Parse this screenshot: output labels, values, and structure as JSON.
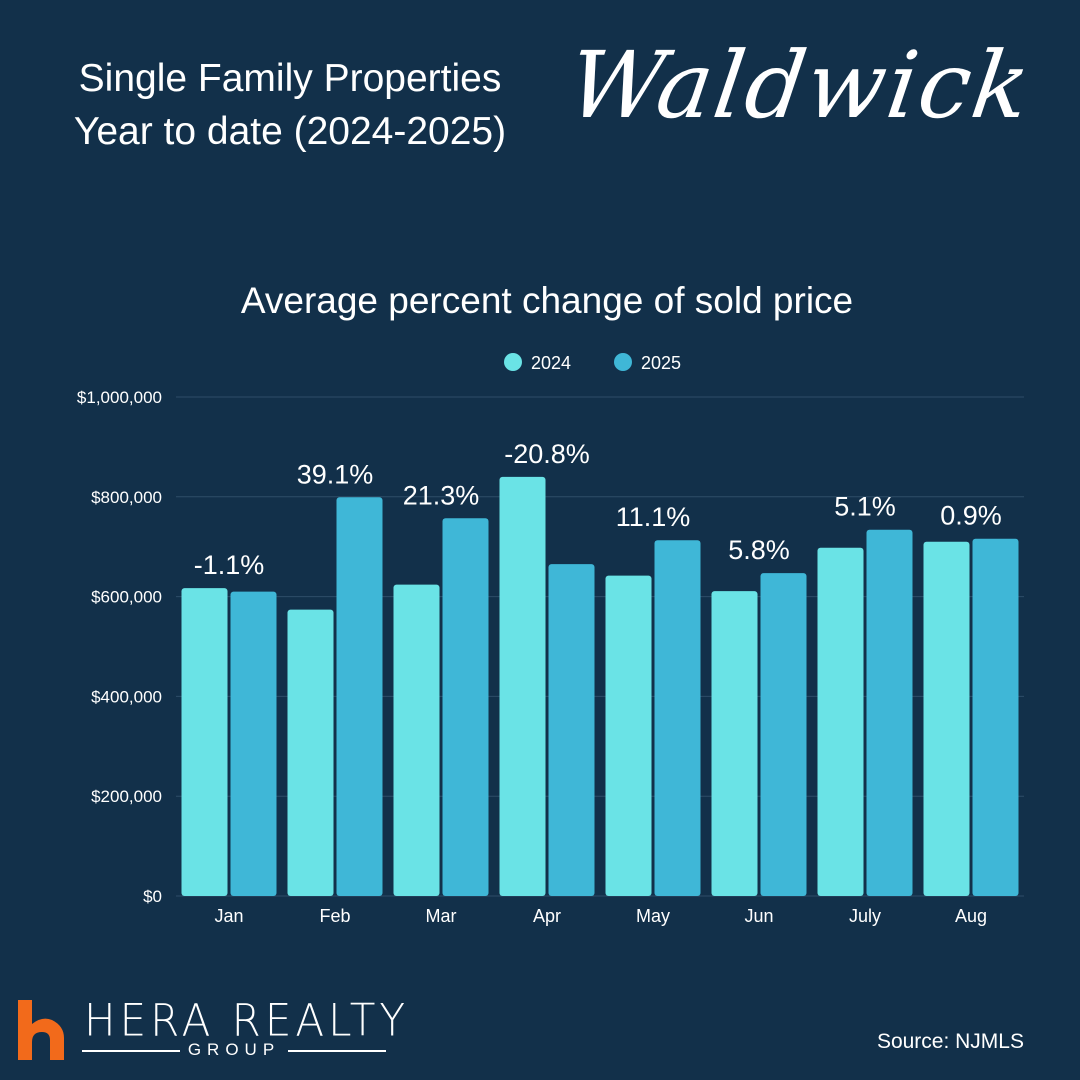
{
  "header": {
    "title_line1": "Single Family Properties",
    "title_line2": "Year to date  (2024-2025)",
    "town": "Waldwick"
  },
  "colors": {
    "background": "#12304a",
    "series_2024": "#6ae3e6",
    "series_2025": "#3fb7d7",
    "brand_accent": "#f26a1b",
    "gridline": "#2e4d68"
  },
  "chart_data": {
    "type": "bar",
    "title": "Average percent change of sold price",
    "categories": [
      "Jan",
      "Feb",
      "Mar",
      "Apr",
      "May",
      "Jun",
      "July",
      "Aug"
    ],
    "series": [
      {
        "name": "2024",
        "values": [
          617000,
          574000,
          624000,
          840000,
          642000,
          611000,
          698000,
          710000
        ]
      },
      {
        "name": "2025",
        "values": [
          610000,
          799000,
          757000,
          665000,
          713000,
          647000,
          734000,
          716000
        ]
      }
    ],
    "percent_change_labels": [
      "-1.1%",
      "39.1%",
      "21.3%",
      "-20.8%",
      "11.1%",
      "5.8%",
      "5.1%",
      "0.9%"
    ],
    "ylim": [
      0,
      1000000
    ],
    "yticks": [
      0,
      200000,
      400000,
      600000,
      800000,
      1000000
    ],
    "ytick_labels": [
      "$0",
      "$200,000",
      "$400,000",
      "$600,000",
      "$800,000",
      "$1,000,000"
    ],
    "xlabel": "",
    "ylabel": "",
    "legend": "top-center",
    "grid": true
  },
  "brand": {
    "name": "HERA REALTY",
    "sub": "GROUP",
    "logo_icon": "house-h-logo-icon"
  },
  "source": "Source: NJMLS"
}
